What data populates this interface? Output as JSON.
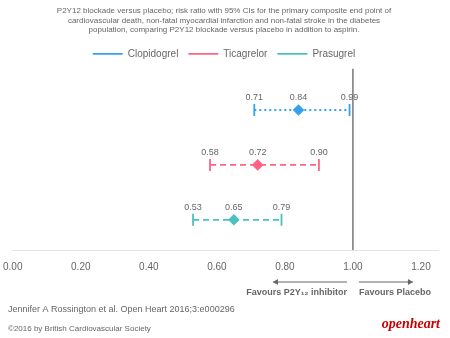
{
  "chart_data": {
    "type": "forest",
    "title": [
      "P2Y12 blockade versus placebo; risk ratio with 95% CIs for the primary composite end point of",
      "cardiovascular death, non-fatal myocardial infarction and non-fatal stroke in the diabetes",
      "population, comparing P2Y12 blockade versus placebo in addition to aspirin."
    ],
    "series": [
      {
        "name": "Clopidogrel",
        "line_style": "dotted",
        "values": [
          0.84
        ],
        "ci_low": [
          0.71
        ],
        "ci_high": [
          0.99
        ],
        "value_labels": [
          "0.84"
        ],
        "ci_low_labels": [
          "0.71"
        ],
        "ci_high_labels": [
          "0.99"
        ]
      },
      {
        "name": "Ticagrelor",
        "line_style": "dashed",
        "values": [
          0.72
        ],
        "ci_low": [
          0.58
        ],
        "ci_high": [
          0.9
        ],
        "value_labels": [
          "0.72"
        ],
        "ci_low_labels": [
          "0.58"
        ],
        "ci_high_labels": [
          "0.90"
        ]
      },
      {
        "name": "Prasugrel",
        "line_style": "dashed",
        "values": [
          0.65
        ],
        "ci_low": [
          0.53
        ],
        "ci_high": [
          0.79
        ],
        "value_labels": [
          "0.65"
        ],
        "ci_low_labels": [
          "0.53"
        ],
        "ci_high_labels": [
          "0.79"
        ]
      }
    ],
    "xlim": [
      0.0,
      1.25
    ],
    "xticks": [
      {
        "value": 0.0,
        "label": "0.00"
      },
      {
        "value": 0.2,
        "label": "0.20"
      },
      {
        "value": 0.4,
        "label": "0.40"
      },
      {
        "value": 0.6,
        "label": "0.60"
      },
      {
        "value": 0.8,
        "label": "0.80"
      },
      {
        "value": 1.0,
        "label": "1.00"
      },
      {
        "value": 1.2,
        "label": "1.20"
      }
    ],
    "reference_line": 1.0,
    "annotations": [
      "Favours P2Y₁₂ inhibitor",
      "Favours Placebo"
    ],
    "citation": "Jennifer A Rossington et al. Open Heart 2016;3:e000296",
    "journal": {
      "text": "openheart",
      "color": "#cc0000"
    },
    "copyright": "©2016 by British Cardiovascular Society",
    "legend": "top",
    "grid": false,
    "data_labels": true,
    "tick_labels": "x"
  }
}
